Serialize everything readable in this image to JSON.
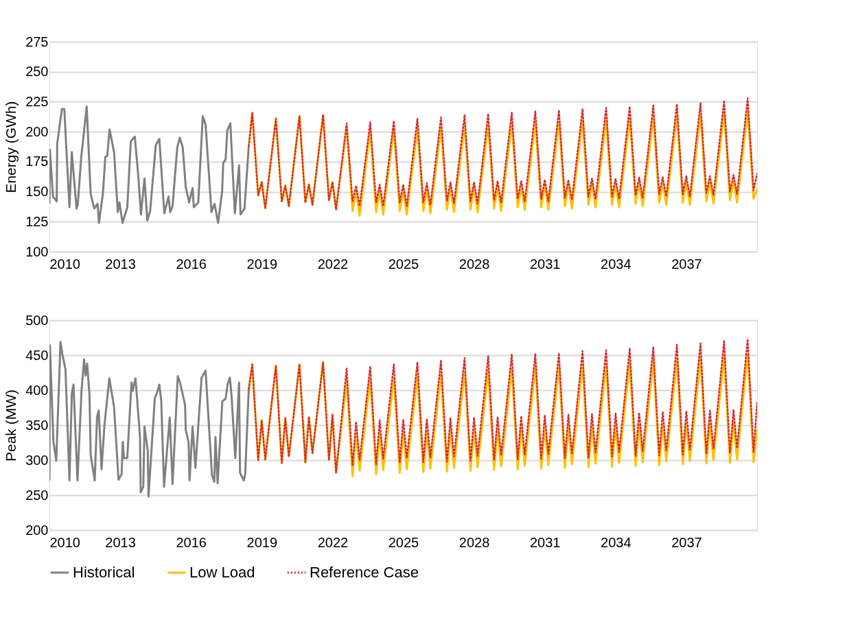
{
  "chart_data": [
    {
      "type": "line",
      "ylabel": "Energy (GWh)",
      "xlim": [
        2010,
        2040
      ],
      "xticks": [
        2010,
        2013,
        2016,
        2019,
        2022,
        2025,
        2028,
        2031,
        2034,
        2037
      ],
      "ylim": [
        100,
        275
      ],
      "yticks": [
        100,
        125,
        150,
        175,
        200,
        225,
        250,
        275
      ],
      "grid": "y",
      "legend": "bottom",
      "x": [
        2018.45,
        2018.6,
        2018.85,
        2019,
        2019.15,
        2019.6,
        2019.85,
        2020,
        2020.15,
        2020.6,
        2020.85,
        2021,
        2021.15,
        2021.6,
        2021.85,
        2022,
        2022.15,
        2022.6,
        2022.85,
        2023,
        2023.15,
        2023.6,
        2023.85,
        2024,
        2024.15,
        2024.6,
        2024.85,
        2025,
        2025.15,
        2025.6,
        2025.85,
        2026,
        2026.15,
        2026.6,
        2026.85,
        2027,
        2027.15,
        2027.6,
        2027.85,
        2028,
        2028.15,
        2028.6,
        2028.85,
        2029,
        2029.15,
        2029.6,
        2029.85,
        2030,
        2030.15,
        2030.6,
        2030.85,
        2031,
        2031.15,
        2031.6,
        2031.85,
        2032,
        2032.15,
        2032.6,
        2032.85,
        2033,
        2033.15,
        2033.6,
        2033.85,
        2034,
        2034.15,
        2034.6,
        2034.85,
        2035,
        2035.15,
        2035.6,
        2035.85,
        2036,
        2036.15,
        2036.6,
        2036.85,
        2037,
        2037.15,
        2037.6,
        2037.85,
        2038,
        2038.15,
        2038.6,
        2038.85,
        2039,
        2039.15,
        2039.6,
        2039.85,
        2040
      ],
      "series": [
        {
          "name": "Historical",
          "color": "#808080",
          "line_style": "solid",
          "x": [
            2010,
            2010.02,
            2010.15,
            2010.31,
            2010.33,
            2010.53,
            2010.63,
            2010.85,
            2010.95,
            2011.15,
            2011.2,
            2011.35,
            2011.58,
            2011.75,
            2011.9,
            2012.04,
            2012.1,
            2012.27,
            2012.37,
            2012.45,
            2012.55,
            2012.74,
            2012.9,
            2012.97,
            2013.1,
            2013.3,
            2013.45,
            2013.62,
            2013.78,
            2013.88,
            2014.03,
            2014.15,
            2014.27,
            2014.51,
            2014.66,
            2014.87,
            2015.05,
            2015.12,
            2015.22,
            2015.42,
            2015.53,
            2015.65,
            2015.78,
            2015.92,
            2016.07,
            2016.12,
            2016.31,
            2016.5,
            2016.62,
            2016.87,
            2017,
            2017.15,
            2017.32,
            2017.37,
            2017.47,
            2017.54,
            2017.67,
            2017.86,
            2018.04,
            2018.1,
            2018.27,
            2018.45
          ],
          "values": [
            140,
            185,
            146,
            142,
            190,
            219,
            219,
            137,
            183,
            136,
            139,
            179,
            221,
            148,
            136,
            140,
            124,
            149,
            179,
            180,
            202,
            183,
            133,
            141,
            124,
            137,
            192,
            196,
            160,
            131,
            161,
            126,
            134,
            189,
            194,
            132,
            146,
            133,
            138,
            187,
            195,
            187,
            154,
            141,
            153,
            137,
            141,
            213,
            206,
            133,
            140,
            124,
            150,
            174,
            177,
            201,
            207,
            132,
            172,
            131,
            136,
            188
          ]
        },
        {
          "name": "Low Load",
          "color": "#ffc000",
          "line_style": "solid",
          "values": [
            188,
            216,
            147,
            158,
            136,
            211,
            142,
            155,
            138,
            213,
            141,
            156,
            139,
            214,
            143,
            158,
            135,
            203,
            134,
            150,
            130,
            201,
            133,
            151,
            131,
            202,
            134,
            151,
            131,
            203,
            134,
            152,
            132,
            203,
            135,
            153,
            133,
            205,
            135,
            153,
            133,
            206,
            136,
            154,
            134,
            207,
            137,
            154,
            135,
            208,
            137,
            155,
            135,
            208,
            138,
            155,
            136,
            209,
            139,
            156,
            137,
            210,
            139,
            156,
            137,
            211,
            140,
            157,
            138,
            212,
            141,
            157,
            139,
            213,
            141,
            158,
            139,
            214,
            142,
            158,
            140,
            216,
            143,
            159,
            141,
            218,
            144,
            152
          ]
        },
        {
          "name": "Reference Case",
          "color": "#d62b2b",
          "line_style": "dotted",
          "values": [
            188,
            216,
            147,
            158,
            136,
            211,
            142,
            155,
            138,
            213,
            141,
            156,
            139,
            214,
            143,
            158,
            135,
            207,
            142,
            155,
            138,
            208,
            141,
            156,
            138,
            209,
            141,
            156,
            138,
            211,
            141,
            157,
            139,
            212,
            142,
            158,
            140,
            214,
            142,
            158,
            140,
            215,
            143,
            159,
            141,
            216,
            144,
            159,
            142,
            217,
            144,
            160,
            142,
            218,
            145,
            160,
            143,
            219,
            146,
            161,
            144,
            220,
            146,
            161,
            144,
            221,
            147,
            162,
            145,
            222,
            148,
            162,
            146,
            223,
            148,
            163,
            146,
            224,
            149,
            163,
            147,
            226,
            150,
            164,
            148,
            228,
            151,
            165
          ]
        }
      ]
    },
    {
      "type": "line",
      "ylabel": "Peak (MW)",
      "xlim": [
        2010,
        2040
      ],
      "xticks": [
        2010,
        2013,
        2016,
        2019,
        2022,
        2025,
        2028,
        2031,
        2034,
        2037
      ],
      "ylim": [
        200,
        500
      ],
      "yticks": [
        200,
        250,
        300,
        350,
        400,
        450,
        500
      ],
      "grid": "y",
      "legend": "bottom",
      "x": [
        2018.45,
        2018.6,
        2018.85,
        2019,
        2019.15,
        2019.6,
        2019.85,
        2020,
        2020.15,
        2020.6,
        2020.85,
        2021,
        2021.15,
        2021.6,
        2021.85,
        2022,
        2022.15,
        2022.6,
        2022.85,
        2023,
        2023.15,
        2023.6,
        2023.85,
        2024,
        2024.15,
        2024.6,
        2024.85,
        2025,
        2025.15,
        2025.6,
        2025.85,
        2026,
        2026.15,
        2026.6,
        2026.85,
        2027,
        2027.15,
        2027.6,
        2027.85,
        2028,
        2028.15,
        2028.6,
        2028.85,
        2029,
        2029.15,
        2029.6,
        2029.85,
        2030,
        2030.15,
        2030.6,
        2030.85,
        2031,
        2031.15,
        2031.6,
        2031.85,
        2032,
        2032.15,
        2032.6,
        2032.85,
        2033,
        2033.15,
        2033.6,
        2033.85,
        2034,
        2034.15,
        2034.6,
        2034.85,
        2035,
        2035.15,
        2035.6,
        2035.85,
        2036,
        2036.15,
        2036.6,
        2036.85,
        2037,
        2037.15,
        2037.6,
        2037.85,
        2038,
        2038.15,
        2038.6,
        2038.85,
        2039,
        2039.15,
        2039.6,
        2039.85,
        2040
      ],
      "series": [
        {
          "name": "Historical",
          "color": "#808080",
          "line_style": "solid",
          "x": [
            2010,
            2010.02,
            2010.17,
            2010.29,
            2010.47,
            2010.54,
            2010.68,
            2010.85,
            2010.95,
            2011.02,
            2011.19,
            2011.36,
            2011.47,
            2011.53,
            2011.6,
            2011.7,
            2011.75,
            2011.92,
            2012.02,
            2012.09,
            2012.21,
            2012.33,
            2012.54,
            2012.74,
            2012.93,
            2013.06,
            2013.11,
            2013.16,
            2013.3,
            2013.48,
            2013.53,
            2013.65,
            2013.84,
            2013.87,
            2013.98,
            2014.03,
            2014.17,
            2014.2,
            2014.47,
            2014.54,
            2014.66,
            2014.74,
            2014.86,
            2015.1,
            2015.22,
            2015.44,
            2015.53,
            2015.75,
            2015.78,
            2015.9,
            2015.94,
            2016.07,
            2016.19,
            2016.45,
            2016.62,
            2016.89,
            2016.99,
            2017.04,
            2017.13,
            2017.33,
            2017.47,
            2017.55,
            2017.65,
            2017.72,
            2017.88,
            2018.04,
            2018.08,
            2018.24,
            2018.3,
            2018.45
          ],
          "values": [
            271,
            464,
            326,
            299,
            469,
            453,
            430,
            271,
            395,
            408,
            271,
            399,
            444,
            421,
            438,
            392,
            307,
            271,
            362,
            371,
            287,
            349,
            417,
            376,
            272,
            280,
            326,
            303,
            303,
            411,
            399,
            417,
            333,
            254,
            262,
            348,
            313,
            248,
            389,
            394,
            408,
            385,
            262,
            361,
            266,
            420,
            412,
            379,
            343,
            326,
            271,
            348,
            289,
            418,
            428,
            279,
            269,
            333,
            267,
            384,
            388,
            408,
            418,
            392,
            303,
            411,
            282,
            271,
            280,
            402
          ]
        },
        {
          "name": "Low Load",
          "color": "#ffc000",
          "line_style": "solid",
          "values": [
            402,
            437,
            300,
            357,
            301,
            435,
            296,
            360,
            305,
            437,
            297,
            362,
            310,
            440,
            300,
            365,
            282,
            413,
            277,
            338,
            285,
            416,
            280,
            340,
            286,
            418,
            282,
            340,
            287,
            421,
            283,
            341,
            288,
            423,
            284,
            342,
            289,
            426,
            285,
            343,
            290,
            428,
            286,
            344,
            291,
            431,
            287,
            345,
            292,
            433,
            288,
            346,
            293,
            434,
            289,
            347,
            294,
            436,
            290,
            348,
            295,
            438,
            291,
            349,
            296,
            440,
            292,
            350,
            297,
            442,
            293,
            351,
            298,
            444,
            294,
            352,
            299,
            446,
            295,
            353,
            300,
            449,
            296,
            354,
            301,
            452,
            297,
            345
          ]
        },
        {
          "name": "Reference Case",
          "color": "#d62b2b",
          "line_style": "dotted",
          "values": [
            402,
            437,
            300,
            357,
            301,
            435,
            296,
            360,
            305,
            437,
            297,
            362,
            310,
            440,
            300,
            365,
            282,
            431,
            292,
            355,
            300,
            434,
            294,
            357,
            302,
            437,
            296,
            358,
            303,
            440,
            297,
            359,
            304,
            443,
            298,
            360,
            305,
            446,
            299,
            361,
            306,
            449,
            300,
            362,
            307,
            451,
            301,
            363,
            308,
            452,
            302,
            364,
            309,
            453,
            303,
            365,
            310,
            456,
            304,
            366,
            311,
            457,
            305,
            367,
            312,
            460,
            306,
            368,
            313,
            462,
            307,
            369,
            314,
            465,
            308,
            370,
            315,
            467,
            309,
            371,
            316,
            470,
            310,
            372,
            317,
            473,
            311,
            382
          ]
        }
      ]
    }
  ]
}
